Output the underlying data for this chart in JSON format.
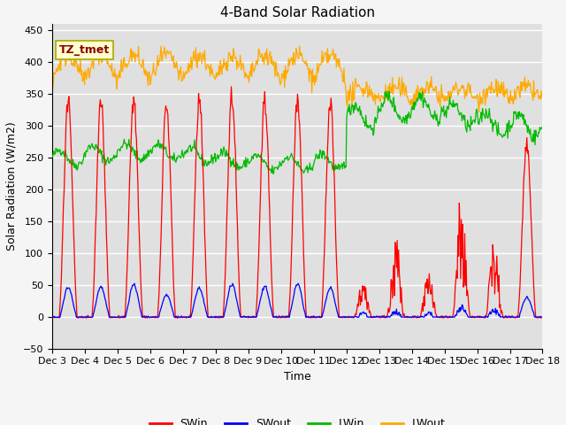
{
  "title": "4-Band Solar Radiation",
  "ylabel": "Solar Radiation (W/m2)",
  "xlabel": "Time",
  "ylim": [
    -50,
    460
  ],
  "annotation": "TZ_tmet",
  "legend_labels": [
    "SWin",
    "SWout",
    "LWin",
    "LWout"
  ],
  "legend_colors": [
    "#ff0000",
    "#0000ff",
    "#00bb00",
    "#ffaa00"
  ],
  "plot_bg_color": "#e0e0e0",
  "fig_bg_color": "#f5f5f5",
  "grid_color": "#ffffff",
  "title_fontsize": 11,
  "axis_label_fontsize": 9,
  "tick_fontsize": 8,
  "tick_labels": [
    "Dec 3",
    "Dec 4",
    "Dec 5",
    "Dec 6",
    "Dec 7",
    "Dec 8",
    "Dec 9",
    "Dec 10",
    "Dec 11",
    "Dec 12",
    "Dec 13",
    "Dec 14",
    "Dec 15",
    "Dec 16",
    "Dec 17",
    "Dec 18"
  ]
}
